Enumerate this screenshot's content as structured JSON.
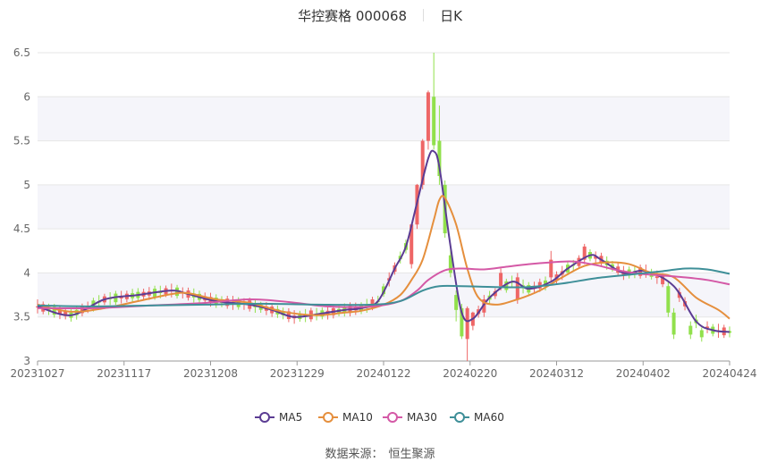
{
  "header": {
    "title": "华控赛格 000068",
    "period": "日K"
  },
  "source": {
    "label": "数据来源：",
    "value": "恒生聚源"
  },
  "colors": {
    "up": "#ee6666",
    "down": "#91e04c",
    "ma5": "#5b3c93",
    "ma10": "#e58f3d",
    "ma30": "#d459a6",
    "ma60": "#3e8f98",
    "band": "#f5f5fa",
    "grid": "#e6e6e6"
  },
  "chart_data": {
    "type": "candlestick",
    "ylim": [
      3,
      6.5
    ],
    "yticks": [
      "3",
      "3.5",
      "4",
      "4.5",
      "5",
      "5.5",
      "6",
      "6.5"
    ],
    "xticks": [
      "20231027",
      "20231117",
      "20231208",
      "20231229",
      "20240122",
      "20240220",
      "20240312",
      "20240402",
      "20240424"
    ],
    "legend": [
      "MA5",
      "MA10",
      "MA30",
      "MA60"
    ],
    "legend_position": "bottom",
    "ma": {
      "MA5": [
        [
          0,
          3.62
        ],
        [
          6,
          3.52
        ],
        [
          12,
          3.7
        ],
        [
          18,
          3.75
        ],
        [
          24,
          3.8
        ],
        [
          27,
          3.76
        ],
        [
          32,
          3.68
        ],
        [
          38,
          3.64
        ],
        [
          42,
          3.58
        ],
        [
          46,
          3.5
        ],
        [
          51,
          3.54
        ],
        [
          55,
          3.58
        ],
        [
          58,
          3.6
        ],
        [
          61,
          3.68
        ],
        [
          64,
          4.05
        ],
        [
          66,
          4.3
        ],
        [
          68,
          4.8
        ],
        [
          70,
          5.3
        ],
        [
          71,
          5.38
        ],
        [
          72,
          5.2
        ],
        [
          74,
          4.3
        ],
        [
          76,
          3.55
        ],
        [
          78,
          3.48
        ],
        [
          81,
          3.72
        ],
        [
          85,
          3.9
        ],
        [
          88,
          3.82
        ],
        [
          92,
          3.9
        ],
        [
          95,
          4.05
        ],
        [
          99,
          4.2
        ],
        [
          101,
          4.15
        ],
        [
          105,
          4.0
        ],
        [
          109,
          4.02
        ],
        [
          114,
          3.85
        ],
        [
          118,
          3.45
        ],
        [
          121,
          3.35
        ],
        [
          124,
          3.33
        ]
      ],
      "MA10": [
        [
          0,
          3.64
        ],
        [
          6,
          3.56
        ],
        [
          12,
          3.6
        ],
        [
          18,
          3.68
        ],
        [
          24,
          3.76
        ],
        [
          27,
          3.77
        ],
        [
          32,
          3.7
        ],
        [
          38,
          3.66
        ],
        [
          44,
          3.56
        ],
        [
          50,
          3.52
        ],
        [
          55,
          3.55
        ],
        [
          58,
          3.57
        ],
        [
          62,
          3.64
        ],
        [
          65,
          3.75
        ],
        [
          67,
          3.92
        ],
        [
          69,
          4.15
        ],
        [
          71,
          4.6
        ],
        [
          72,
          4.83
        ],
        [
          73,
          4.85
        ],
        [
          75,
          4.55
        ],
        [
          77,
          4.05
        ],
        [
          79,
          3.72
        ],
        [
          82,
          3.64
        ],
        [
          86,
          3.7
        ],
        [
          90,
          3.8
        ],
        [
          94,
          3.95
        ],
        [
          98,
          4.08
        ],
        [
          102,
          4.12
        ],
        [
          106,
          4.1
        ],
        [
          110,
          4.0
        ],
        [
          114,
          3.95
        ],
        [
          118,
          3.72
        ],
        [
          122,
          3.58
        ],
        [
          124,
          3.48
        ]
      ],
      "MA30": [
        [
          0,
          3.6
        ],
        [
          10,
          3.6
        ],
        [
          20,
          3.63
        ],
        [
          30,
          3.66
        ],
        [
          38,
          3.7
        ],
        [
          45,
          3.67
        ],
        [
          52,
          3.62
        ],
        [
          60,
          3.62
        ],
        [
          65,
          3.68
        ],
        [
          68,
          3.8
        ],
        [
          70,
          3.92
        ],
        [
          73,
          4.03
        ],
        [
          76,
          4.05
        ],
        [
          80,
          4.04
        ],
        [
          84,
          4.07
        ],
        [
          88,
          4.1
        ],
        [
          92,
          4.12
        ],
        [
          96,
          4.13
        ],
        [
          100,
          4.09
        ],
        [
          104,
          4.03
        ],
        [
          108,
          3.99
        ],
        [
          112,
          3.97
        ],
        [
          116,
          3.95
        ],
        [
          120,
          3.92
        ],
        [
          124,
          3.87
        ]
      ],
      "MA60": [
        [
          0,
          3.63
        ],
        [
          10,
          3.62
        ],
        [
          20,
          3.63
        ],
        [
          30,
          3.64
        ],
        [
          40,
          3.65
        ],
        [
          50,
          3.64
        ],
        [
          60,
          3.64
        ],
        [
          65,
          3.68
        ],
        [
          69,
          3.8
        ],
        [
          72,
          3.85
        ],
        [
          76,
          3.85
        ],
        [
          82,
          3.84
        ],
        [
          88,
          3.84
        ],
        [
          94,
          3.88
        ],
        [
          100,
          3.94
        ],
        [
          106,
          3.98
        ],
        [
          112,
          4.02
        ],
        [
          116,
          4.05
        ],
        [
          120,
          4.04
        ],
        [
          124,
          3.99
        ]
      ]
    },
    "candles": [
      {
        "i": 67,
        "o": 4.1,
        "c": 4.55,
        "h": 4.56,
        "l": 4.05
      },
      {
        "i": 68,
        "o": 4.55,
        "c": 5.0,
        "h": 5.01,
        "l": 4.5
      },
      {
        "i": 69,
        "o": 5.0,
        "c": 5.5,
        "h": 5.52,
        "l": 4.95
      },
      {
        "i": 70,
        "o": 5.5,
        "c": 6.05,
        "h": 6.07,
        "l": 5.4
      },
      {
        "i": 71,
        "o": 6.0,
        "c": 5.45,
        "h": 6.5,
        "l": 5.4
      },
      {
        "i": 72,
        "o": 5.5,
        "c": 5.1,
        "h": 5.9,
        "l": 5.0
      },
      {
        "i": 73,
        "o": 5.0,
        "c": 4.45,
        "h": 5.05,
        "l": 4.4
      },
      {
        "i": 74,
        "o": 4.2,
        "c": 4.0,
        "h": 4.3,
        "l": 3.95
      },
      {
        "i": 75,
        "o": 3.75,
        "c": 3.58,
        "h": 3.8,
        "l": 3.45
      },
      {
        "i": 76,
        "o": 3.6,
        "c": 3.28,
        "h": 3.65,
        "l": 3.25
      },
      {
        "i": 77,
        "o": 3.25,
        "c": 3.6,
        "h": 3.62,
        "l": 3.0
      },
      {
        "i": 78,
        "o": 3.4,
        "c": 3.55,
        "h": 3.56,
        "l": 3.35
      },
      {
        "i": 80,
        "o": 3.55,
        "c": 3.7,
        "h": 3.75,
        "l": 3.5
      },
      {
        "i": 83,
        "o": 3.85,
        "c": 4.0,
        "h": 4.05,
        "l": 3.8
      },
      {
        "i": 86,
        "o": 3.7,
        "c": 3.95,
        "h": 4.0,
        "l": 3.65
      },
      {
        "i": 92,
        "o": 3.95,
        "c": 4.15,
        "h": 4.25,
        "l": 3.9
      },
      {
        "i": 98,
        "o": 4.15,
        "c": 4.3,
        "h": 4.33,
        "l": 4.1
      },
      {
        "i": 113,
        "o": 3.85,
        "c": 3.55,
        "h": 3.9,
        "l": 3.5
      },
      {
        "i": 114,
        "o": 3.55,
        "c": 3.3,
        "h": 3.6,
        "l": 3.25
      },
      {
        "i": 117,
        "o": 3.4,
        "c": 3.3,
        "h": 3.45,
        "l": 3.25
      },
      {
        "i": 119,
        "o": 3.35,
        "c": 3.27,
        "h": 3.38,
        "l": 3.22
      }
    ]
  }
}
